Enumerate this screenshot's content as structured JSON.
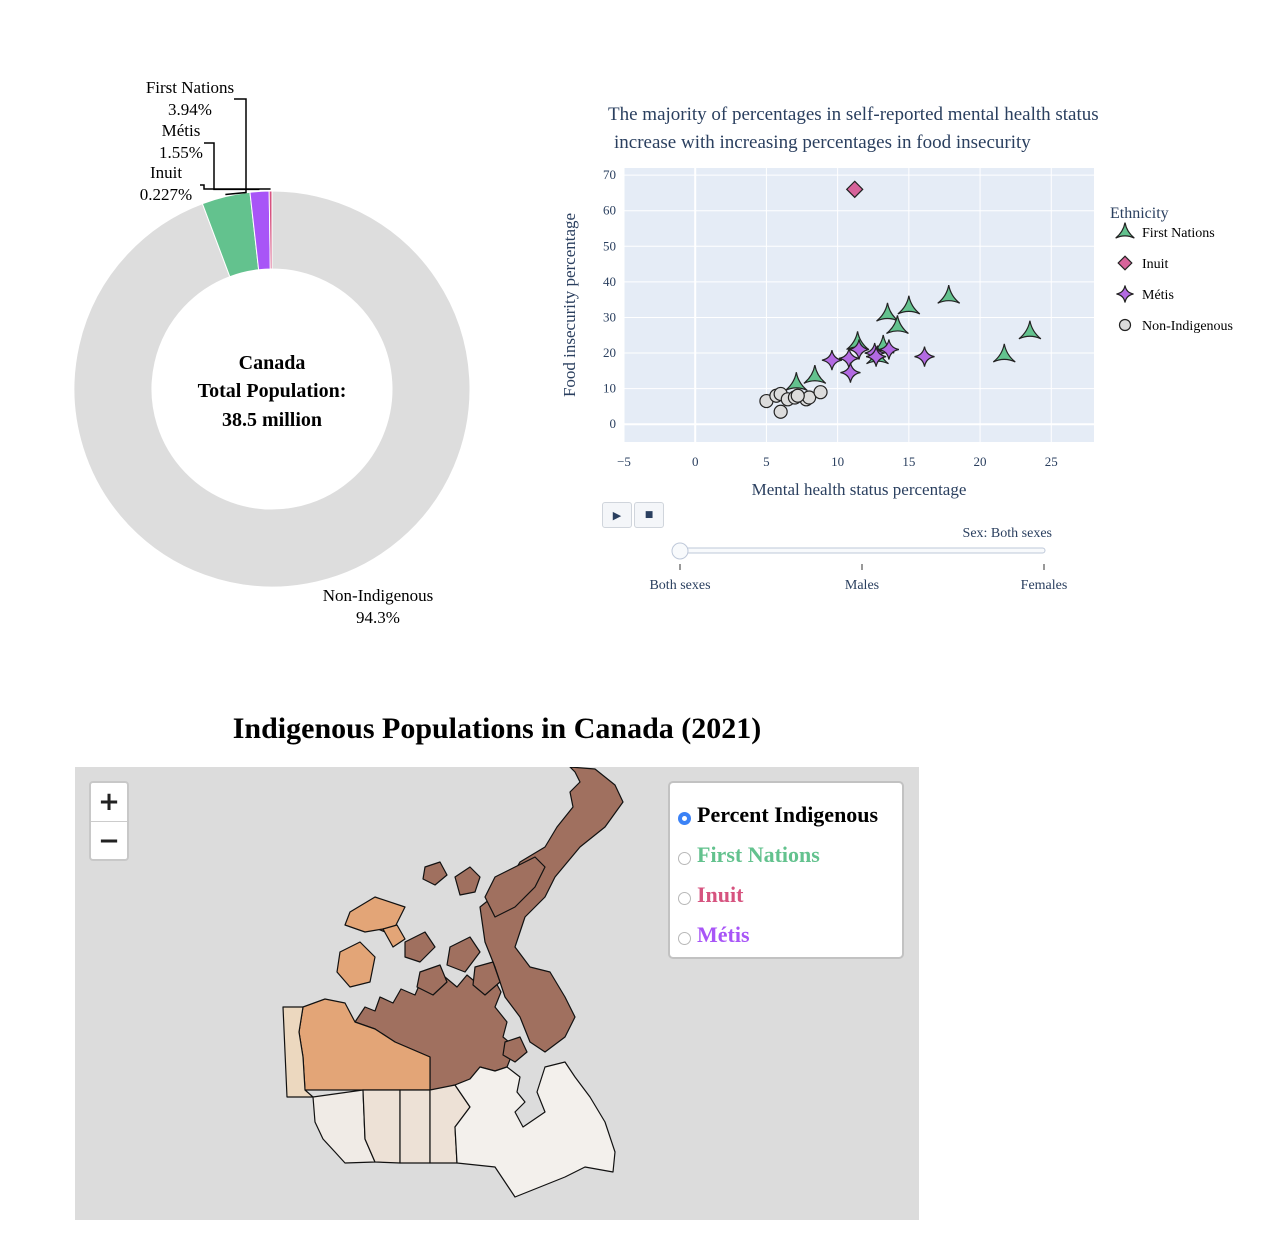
{
  "donut": {
    "center_line1": "Canada",
    "center_line2": "Total Population:",
    "center_line3": "38.5 million",
    "chart_data": {
      "type": "pie",
      "hole": 0.6,
      "slices": [
        {
          "label": "Non-Indigenous",
          "value": 94.3,
          "display": "94.3%",
          "color": "#dddddd"
        },
        {
          "label": "First Nations",
          "value": 3.94,
          "display": "3.94%",
          "color": "#63c28e"
        },
        {
          "label": "Métis",
          "value": 1.55,
          "display": "1.55%",
          "color": "#a855f7"
        },
        {
          "label": "Inuit",
          "value": 0.227,
          "display": "0.227%",
          "color": "#d6537f"
        }
      ]
    }
  },
  "scatter": {
    "chart_data": {
      "type": "scatter",
      "title_line1": "The majority of percentages in self-reported mental health status",
      "title_line2": "increase with increasing percentages in food insecurity",
      "xlabel": "Mental health status percentage",
      "ylabel": "Food insecurity percentage",
      "xlim": [
        -5,
        28
      ],
      "ylim": [
        -5,
        72
      ],
      "xticks": [
        -5,
        0,
        5,
        10,
        15,
        20,
        25
      ],
      "yticks": [
        0,
        10,
        20,
        30,
        40,
        50,
        60,
        70
      ],
      "legend_title": "Ethnicity",
      "series": [
        {
          "name": "First Nations",
          "symbol": "triangle",
          "color": "#63c28e",
          "points": [
            [
              7.1,
              11.5
            ],
            [
              8.4,
              13.5
            ],
            [
              11.4,
              23.0
            ],
            [
              13.5,
              31.0
            ],
            [
              14.2,
              27.5
            ],
            [
              15.0,
              33.0
            ],
            [
              17.8,
              36.0
            ],
            [
              21.7,
              19.5
            ],
            [
              23.5,
              26.0
            ],
            [
              13.2,
              22.0
            ],
            [
              12.8,
              19.0
            ]
          ]
        },
        {
          "name": "Inuit",
          "symbol": "diamond",
          "color": "#d6639a",
          "points": [
            [
              11.2,
              66.0
            ]
          ]
        },
        {
          "name": "Métis",
          "symbol": "star",
          "color": "#b36ae2",
          "points": [
            [
              9.6,
              18.0
            ],
            [
              10.8,
              18.5
            ],
            [
              11.5,
              21.0
            ],
            [
              10.9,
              14.5
            ],
            [
              12.6,
              20.0
            ],
            [
              12.7,
              19.0
            ],
            [
              13.6,
              21.0
            ],
            [
              16.1,
              19.0
            ]
          ]
        },
        {
          "name": "Non-Indigenous",
          "symbol": "circle",
          "color": "#dcdcdc",
          "points": [
            [
              5.0,
              6.5
            ],
            [
              5.7,
              8.0
            ],
            [
              6.0,
              8.5
            ],
            [
              6.5,
              7.0
            ],
            [
              7.0,
              7.5
            ],
            [
              6.0,
              3.5
            ],
            [
              7.8,
              7.0
            ],
            [
              8.0,
              7.5
            ],
            [
              8.8,
              9.0
            ],
            [
              7.2,
              8.0
            ]
          ]
        }
      ]
    },
    "play_icon": "play-icon",
    "stop_icon": "stop-icon",
    "slider": {
      "current_label": "Sex: Both sexes",
      "steps": [
        "Both sexes",
        "Males",
        "Females"
      ],
      "selected_index": 0
    }
  },
  "map": {
    "title": "Indigenous Populations in Canada (2021)",
    "zoom_in": "+",
    "zoom_out": "−",
    "layers": [
      {
        "label": "Percent Indigenous",
        "color": "#000000",
        "selected": true
      },
      {
        "label": "First Nations",
        "color": "#63c28e",
        "selected": false
      },
      {
        "label": "Inuit",
        "color": "#d6537f",
        "selected": false
      },
      {
        "label": "Métis",
        "color": "#a855f7",
        "selected": false
      }
    ],
    "region_colors": {
      "nunavut": "#a0705f",
      "northwest_territories": "#e3a577",
      "yukon": "#ecd8bf",
      "prairies": "#ede1d6",
      "bc": "#f0ebe6",
      "east": "#f3f0ec"
    }
  }
}
